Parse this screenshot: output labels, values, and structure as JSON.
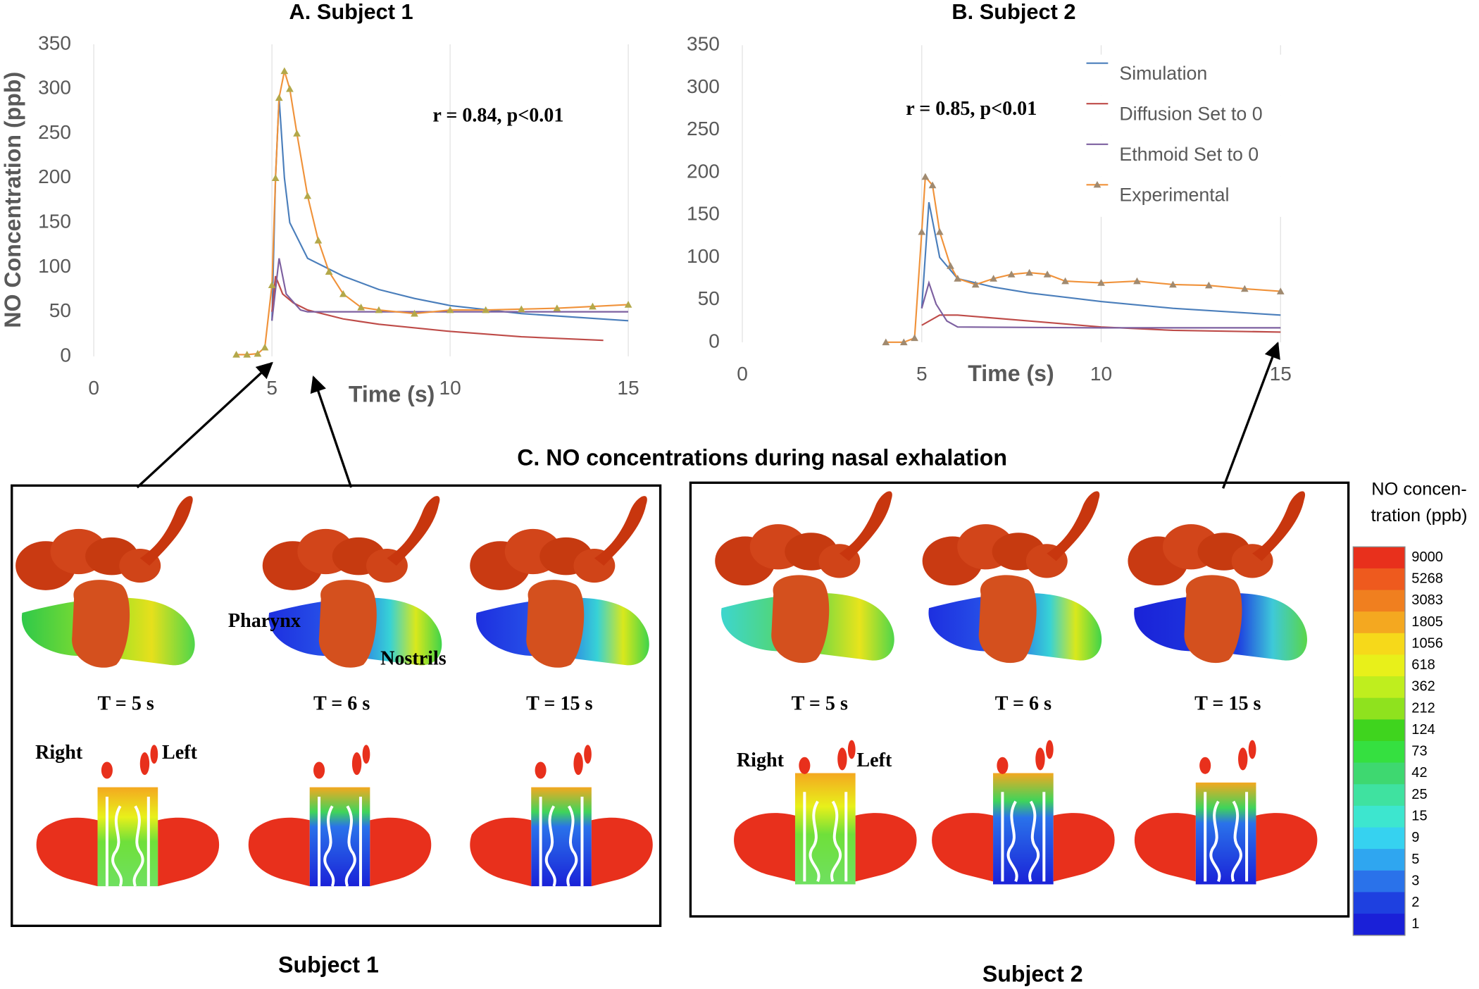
{
  "chart_data": [
    {
      "type": "line",
      "title": "A. Subject 1",
      "x_label": "Time (s)",
      "y_label": "NO Concentration (ppb)",
      "annotation": "r = 0.84, p<0.01",
      "xlim": [
        0,
        15
      ],
      "xticks": [
        0,
        5,
        10,
        15
      ],
      "ylim": [
        0,
        350
      ],
      "yticks": [
        0,
        50,
        100,
        150,
        200,
        250,
        300,
        350
      ],
      "grid": "x",
      "series": [
        {
          "color": "#4a7ebb",
          "x": [
            5.0,
            5.1,
            5.2,
            5.35,
            5.5,
            6,
            7,
            8,
            9,
            10,
            12,
            15
          ],
          "values": [
            40,
            200,
            290,
            200,
            150,
            110,
            90,
            75,
            65,
            57,
            48,
            40
          ]
        },
        {
          "color": "#be4b48",
          "x": [
            5.0,
            5.1,
            5.3,
            5.6,
            6,
            7,
            8,
            10,
            12,
            14.3
          ],
          "values": [
            50,
            90,
            70,
            60,
            52,
            42,
            36,
            28,
            22,
            18
          ]
        },
        {
          "color": "#7d60a0",
          "x": [
            5.0,
            5.2,
            5.4,
            5.8,
            6,
            10,
            15
          ],
          "values": [
            40,
            110,
            70,
            52,
            50,
            50,
            50
          ]
        },
        {
          "color": "#f0923a",
          "marker": "triangle",
          "marker_color": "#b3a84a",
          "x": [
            4.0,
            4.3,
            4.6,
            4.8,
            5.0,
            5.1,
            5.2,
            5.35,
            5.5,
            5.7,
            6.0,
            6.3,
            6.6,
            7.0,
            7.5,
            8.0,
            9.0,
            10.0,
            11.0,
            12.0,
            13.0,
            14.0,
            15.0
          ],
          "values": [
            2,
            2,
            3,
            10,
            80,
            200,
            290,
            320,
            300,
            250,
            180,
            130,
            95,
            70,
            55,
            52,
            48,
            52,
            52,
            53,
            54,
            56,
            58
          ]
        }
      ]
    },
    {
      "type": "line",
      "title": "B. Subject 2",
      "x_label": "Time (s)",
      "annotation": "r = 0.85, p<0.01",
      "xlim": [
        0,
        15
      ],
      "xticks": [
        0,
        5,
        10,
        15
      ],
      "ylim": [
        0,
        350
      ],
      "yticks": [
        0,
        50,
        100,
        150,
        200,
        250,
        300,
        350
      ],
      "grid": "x",
      "legend": "upper right",
      "series": [
        {
          "name": "Simulation",
          "color": "#4a7ebb",
          "x": [
            5.0,
            5.2,
            5.5,
            6,
            7,
            8,
            10,
            12,
            15
          ],
          "values": [
            40,
            165,
            100,
            75,
            65,
            58,
            48,
            40,
            32
          ]
        },
        {
          "name": "Diffusion Set to 0",
          "color": "#be4b48",
          "x": [
            5.0,
            5.5,
            6,
            8,
            10,
            12,
            15
          ],
          "values": [
            20,
            32,
            32,
            25,
            18,
            14,
            12
          ]
        },
        {
          "name": "Ethmoid Set to 0",
          "color": "#7d60a0",
          "x": [
            5.0,
            5.2,
            5.4,
            5.7,
            6,
            10,
            15
          ],
          "values": [
            40,
            70,
            45,
            25,
            18,
            17,
            17
          ]
        },
        {
          "name": "Experimental",
          "color": "#f0923a",
          "marker": "triangle",
          "marker_color": "#a08a70",
          "x": [
            4.0,
            4.5,
            4.8,
            5.0,
            5.1,
            5.3,
            5.5,
            5.8,
            6.0,
            6.5,
            7.0,
            7.5,
            8.0,
            8.5,
            9.0,
            10.0,
            11.0,
            12.0,
            13.0,
            14.0,
            15.0
          ],
          "values": [
            0,
            0,
            5,
            130,
            195,
            185,
            130,
            90,
            75,
            68,
            75,
            80,
            82,
            80,
            72,
            70,
            72,
            68,
            67,
            63,
            60
          ]
        }
      ]
    }
  ],
  "panel_c": {
    "title": "C. NO concentrations during nasal exhalation",
    "subjects": [
      {
        "label": "Subject 1",
        "times": [
          "T = 5 s",
          "T = 6 s",
          "T = 15 s"
        ],
        "right": "Right",
        "left": "Left"
      },
      {
        "label": "Subject 2",
        "times": [
          "T = 5 s",
          "T = 6 s",
          "T = 15 s"
        ],
        "right": "Right",
        "left": "Left"
      }
    ],
    "annotations": [
      "Pharynx",
      "Nostrils"
    ],
    "colorbar": {
      "title": [
        "NO concen-",
        "tration (ppb)"
      ],
      "labels": [
        9000,
        5268,
        3083,
        1805,
        1056,
        618,
        362,
        212,
        124,
        73,
        42,
        25,
        15,
        9,
        5,
        3,
        2,
        1
      ],
      "colors": [
        "#e8301c",
        "#ee5a1e",
        "#f07f1f",
        "#f4a820",
        "#f6d91a",
        "#e8f01a",
        "#bfee1e",
        "#8fe21e",
        "#3fd41e",
        "#35e040",
        "#3ed870",
        "#3fe2a0",
        "#3de6cf",
        "#36d2f0",
        "#2fa6f0",
        "#2a72ea",
        "#1e40e0",
        "#1a20d8"
      ]
    }
  }
}
